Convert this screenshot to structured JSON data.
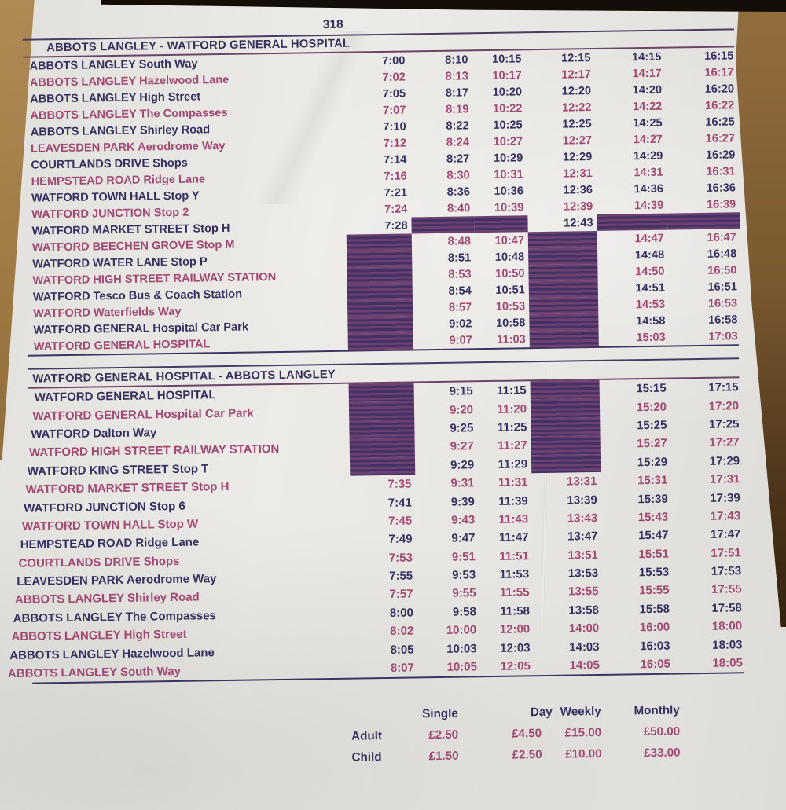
{
  "route_number": "318",
  "colors": {
    "text_navy": "#363061",
    "text_magenta": "#a04a73",
    "no_service_bar": "#64396a",
    "bar_stripe": "#3d3365",
    "rule_line": "#4c3c62",
    "paper": "#e8e6e2",
    "wood": "#8f6c3a"
  },
  "sections": [
    {
      "title": "ABBOTS LANGLEY - WATFORD GENERAL HOSPITAL",
      "rows": [
        {
          "stop": "ABBOTS LANGLEY South Way",
          "times": [
            "7:00",
            "8:10",
            "10:15",
            "12:15",
            "14:15",
            "16:15"
          ]
        },
        {
          "stop": "ABBOTS LANGLEY Hazelwood Lane",
          "times": [
            "7:02",
            "8:13",
            "10:17",
            "12:17",
            "14:17",
            "16:17"
          ]
        },
        {
          "stop": "ABBOTS LANGLEY High Street",
          "times": [
            "7:05",
            "8:17",
            "10:20",
            "12:20",
            "14:20",
            "16:20"
          ]
        },
        {
          "stop": "ABBOTS LANGLEY The Compasses",
          "times": [
            "7:07",
            "8:19",
            "10:22",
            "12:22",
            "14:22",
            "16:22"
          ]
        },
        {
          "stop": "ABBOTS LANGLEY Shirley Road",
          "times": [
            "7:10",
            "8:22",
            "10:25",
            "12:25",
            "14:25",
            "16:25"
          ]
        },
        {
          "stop": "LEAVESDEN PARK Aerodrome Way",
          "times": [
            "7:12",
            "8:24",
            "10:27",
            "12:27",
            "14:27",
            "16:27"
          ]
        },
        {
          "stop": "COURTLANDS DRIVE Shops",
          "times": [
            "7:14",
            "8:27",
            "10:29",
            "12:29",
            "14:29",
            "16:29"
          ]
        },
        {
          "stop": "HEMPSTEAD ROAD Ridge Lane",
          "times": [
            "7:16",
            "8:30",
            "10:31",
            "12:31",
            "14:31",
            "16:31"
          ]
        },
        {
          "stop": "WATFORD TOWN HALL Stop Y",
          "times": [
            "7:21",
            "8:36",
            "10:36",
            "12:36",
            "14:36",
            "16:36"
          ]
        },
        {
          "stop": "WATFORD JUNCTION Stop 2",
          "times": [
            "7:24",
            "8:40",
            "10:39",
            "12:39",
            "14:39",
            "16:39"
          ]
        },
        {
          "stop": "WATFORD MARKET STREET Stop H",
          "times": [
            "7:28",
            null,
            null,
            "12:43",
            null,
            null
          ]
        },
        {
          "stop": "WATFORD BEECHEN GROVE Stop M",
          "times": [
            null,
            "8:48",
            "10:47",
            null,
            "14:47",
            "16:47"
          ]
        },
        {
          "stop": "WATFORD WATER LANE Stop P",
          "times": [
            null,
            "8:51",
            "10:48",
            null,
            "14:48",
            "16:48"
          ]
        },
        {
          "stop": "WATFORD HIGH STREET RAILWAY STATION",
          "times": [
            null,
            "8:53",
            "10:50",
            null,
            "14:50",
            "16:50"
          ]
        },
        {
          "stop": "WATFORD Tesco Bus & Coach Station",
          "times": [
            null,
            "8:54",
            "10:51",
            null,
            "14:51",
            "16:51"
          ]
        },
        {
          "stop": "WATFORD Waterfields Way",
          "times": [
            null,
            "8:57",
            "10:53",
            null,
            "14:53",
            "16:53"
          ]
        },
        {
          "stop": "WATFORD GENERAL Hospital Car Park",
          "times": [
            null,
            "9:02",
            "10:58",
            null,
            "14:58",
            "16:58"
          ]
        },
        {
          "stop": "WATFORD GENERAL HOSPITAL",
          "times": [
            null,
            "9:07",
            "11:03",
            null,
            "15:03",
            "17:03"
          ]
        }
      ]
    },
    {
      "title": "WATFORD GENERAL HOSPITAL - ABBOTS LANGLEY",
      "rows": [
        {
          "stop": "WATFORD GENERAL HOSPITAL",
          "times": [
            null,
            "9:15",
            "11:15",
            null,
            "15:15",
            "17:15"
          ]
        },
        {
          "stop": "WATFORD GENERAL Hospital Car Park",
          "times": [
            null,
            "9:20",
            "11:20",
            null,
            "15:20",
            "17:20"
          ]
        },
        {
          "stop": "WATFORD Dalton Way",
          "times": [
            null,
            "9:25",
            "11:25",
            null,
            "15:25",
            "17:25"
          ]
        },
        {
          "stop": "WATFORD HIGH STREET RAILWAY STATION",
          "times": [
            null,
            "9:27",
            "11:27",
            null,
            "15:27",
            "17:27"
          ]
        },
        {
          "stop": "WATFORD KING STREET Stop T",
          "times": [
            null,
            "9:29",
            "11:29",
            null,
            "15:29",
            "17:29"
          ]
        },
        {
          "stop": "WATFORD MARKET STREET Stop H",
          "times": [
            "7:35",
            "9:31",
            "11:31",
            "13:31",
            "15:31",
            "17:31"
          ]
        },
        {
          "stop": "WATFORD JUNCTION Stop 6",
          "times": [
            "7:41",
            "9:39",
            "11:39",
            "13:39",
            "15:39",
            "17:39"
          ]
        },
        {
          "stop": "WATFORD TOWN HALL Stop W",
          "times": [
            "7:45",
            "9:43",
            "11:43",
            "13:43",
            "15:43",
            "17:43"
          ]
        },
        {
          "stop": "HEMPSTEAD ROAD Ridge Lane",
          "times": [
            "7:49",
            "9:47",
            "11:47",
            "13:47",
            "15:47",
            "17:47"
          ]
        },
        {
          "stop": "COURTLANDS DRIVE Shops",
          "times": [
            "7:53",
            "9:51",
            "11:51",
            "13:51",
            "15:51",
            "17:51"
          ]
        },
        {
          "stop": "LEAVESDEN PARK Aerodrome Way",
          "times": [
            "7:55",
            "9:53",
            "11:53",
            "13:53",
            "15:53",
            "17:53"
          ]
        },
        {
          "stop": "ABBOTS LANGLEY Shirley Road",
          "times": [
            "7:57",
            "9:55",
            "11:55",
            "13:55",
            "15:55",
            "17:55"
          ]
        },
        {
          "stop": "ABBOTS LANGLEY The Compasses",
          "times": [
            "8:00",
            "9:58",
            "11:58",
            "13:58",
            "15:58",
            "17:58"
          ]
        },
        {
          "stop": "ABBOTS LANGLEY High Street",
          "times": [
            "8:02",
            "10:00",
            "12:00",
            "14:00",
            "16:00",
            "18:00"
          ]
        },
        {
          "stop": "ABBOTS LANGLEY Hazelwood Lane",
          "times": [
            "8:05",
            "10:03",
            "12:03",
            "14:03",
            "16:03",
            "18:03"
          ]
        },
        {
          "stop": "ABBOTS LANGLEY South Way",
          "times": [
            "8:07",
            "10:05",
            "12:05",
            "14:05",
            "16:05",
            "18:05"
          ]
        }
      ]
    }
  ],
  "fares": {
    "headers": [
      "Single",
      "Day",
      "Weekly",
      "Monthly"
    ],
    "rows": [
      {
        "label": "Adult",
        "values": [
          "£2.50",
          "£4.50",
          "£15.00",
          "£50.00"
        ]
      },
      {
        "label": "Child",
        "values": [
          "£1.50",
          "£2.50",
          "£10.00",
          "£33.00"
        ]
      }
    ]
  }
}
